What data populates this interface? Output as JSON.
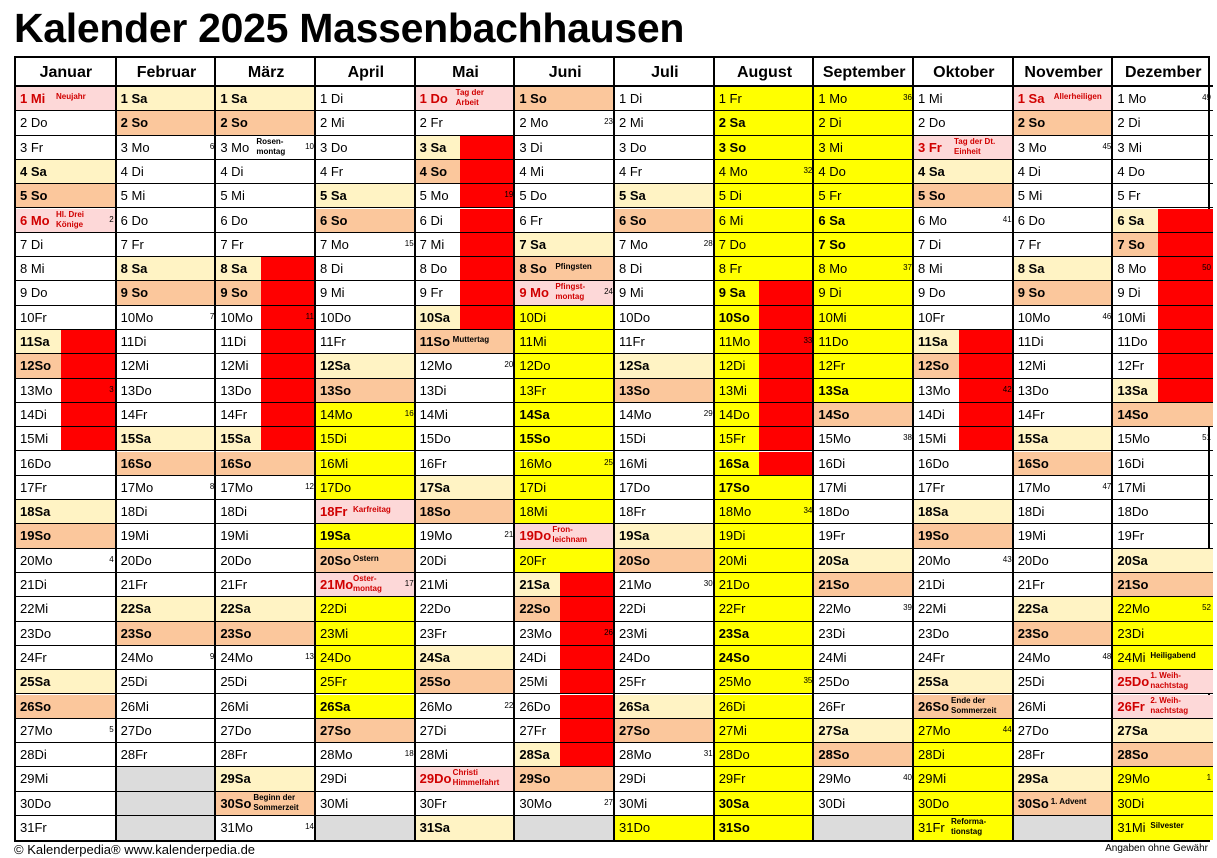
{
  "title": "Kalender 2025 Massenbachhausen",
  "colors": {
    "saturday": "#fff3c4",
    "sunday": "#fbc79c",
    "holiday": "#fdd8d8",
    "school_holiday": "#ffff00",
    "marker": "#ff0000",
    "empty": "#dcdcdc",
    "holiday_text": "#d00000"
  },
  "months": [
    {
      "name": "Januar",
      "first_weekday": 2,
      "days": 31,
      "yellow": [],
      "blocks": [
        11,
        12,
        13,
        14,
        15
      ]
    },
    {
      "name": "Februar",
      "first_weekday": 5,
      "days": 28,
      "yellow": [],
      "blocks": []
    },
    {
      "name": "März",
      "first_weekday": 5,
      "days": 31,
      "yellow": [],
      "blocks": [
        8,
        9,
        10,
        11,
        12,
        13,
        14,
        15
      ]
    },
    {
      "name": "April",
      "first_weekday": 1,
      "days": 30,
      "yellow": [
        14,
        15,
        16,
        17,
        19,
        22,
        23,
        24,
        25,
        26
      ],
      "blocks": []
    },
    {
      "name": "Mai",
      "first_weekday": 3,
      "days": 31,
      "yellow": [],
      "blocks": [
        3,
        4,
        5,
        6,
        7,
        8,
        9,
        10
      ]
    },
    {
      "name": "Juni",
      "first_weekday": 6,
      "days": 30,
      "yellow": [
        10,
        11,
        12,
        13,
        14,
        15,
        16,
        17,
        18,
        20
      ],
      "blocks": [
        21,
        22,
        23,
        24,
        25,
        26,
        27,
        28
      ]
    },
    {
      "name": "Juli",
      "first_weekday": 1,
      "days": 31,
      "yellow": [
        31
      ],
      "blocks": []
    },
    {
      "name": "August",
      "first_weekday": 4,
      "days": 31,
      "yellow": [
        1,
        2,
        3,
        4,
        5,
        6,
        7,
        8,
        9,
        10,
        11,
        12,
        13,
        14,
        15,
        16,
        17,
        18,
        19,
        20,
        21,
        22,
        23,
        24,
        25,
        26,
        27,
        28,
        29,
        30,
        31
      ],
      "blocks": [
        9,
        10,
        11,
        12,
        13,
        14,
        15,
        16
      ]
    },
    {
      "name": "September",
      "first_weekday": 0,
      "days": 30,
      "yellow": [
        1,
        2,
        3,
        4,
        5,
        6,
        7,
        8,
        9,
        10,
        11,
        12,
        13
      ],
      "blocks": []
    },
    {
      "name": "Oktober",
      "first_weekday": 2,
      "days": 31,
      "yellow": [
        27,
        28,
        29,
        30,
        31
      ],
      "blocks": [
        11,
        12,
        13,
        14,
        15
      ]
    },
    {
      "name": "November",
      "first_weekday": 5,
      "days": 30,
      "yellow": [],
      "blocks": []
    },
    {
      "name": "Dezember",
      "first_weekday": 0,
      "days": 31,
      "yellow": [
        22,
        23,
        24,
        29,
        30,
        31
      ],
      "blocks": [
        6,
        7,
        8,
        9,
        10,
        11,
        12,
        13
      ]
    }
  ],
  "weekdays": [
    "Mo",
    "Di",
    "Mi",
    "Do",
    "Fr",
    "Sa",
    "So"
  ],
  "holidays": {
    "0-1": "Neujahr",
    "0-6": "Hl. Drei\nKönige",
    "3-18": "Karfreitag",
    "3-21": "Oster-\nmontag",
    "4-1": "Tag der\nArbeit",
    "4-29": "Christi\nHimmelfahrt",
    "5-9": "Pfingst-\nmontag",
    "5-19": "Fron-\nleichnam",
    "9-3": "Tag der Dt.\nEinheit",
    "10-1": "Allerheiligen",
    "11-25": "1. Weih-\nnachtstag",
    "11-26": "2. Weih-\nnachtstag"
  },
  "events": {
    "2-3": "Rosen-\nmontag",
    "2-30": "Beginn der\nSommerzeit",
    "3-20": "Ostern",
    "4-11": "Muttertag",
    "5-8": "Pfingsten",
    "9-26": "Ende der\nSommerzeit",
    "9-31": "Reforma-\ntionstag",
    "10-30": "1. Advent",
    "11-24": "Heiligabend",
    "11-31": "Silvester"
  },
  "week_numbers": {
    "0-6": "2",
    "0-13": "3",
    "0-20": "4",
    "0-27": "5",
    "1-3": "6",
    "1-10": "7",
    "1-17": "8",
    "1-24": "9",
    "2-3": "10",
    "2-10": "11",
    "2-17": "12",
    "2-24": "13",
    "2-31": "14",
    "3-7": "15",
    "3-14": "16",
    "3-21": "17",
    "3-28": "18",
    "4-5": "19",
    "4-12": "20",
    "4-19": "21",
    "4-26": "22",
    "5-2": "23",
    "5-9": "24",
    "5-16": "25",
    "5-23": "26",
    "5-30": "27",
    "6-7": "28",
    "6-14": "29",
    "6-21": "30",
    "6-28": "31",
    "7-4": "32",
    "7-11": "33",
    "7-18": "34",
    "7-25": "35",
    "8-1": "36",
    "8-8": "37",
    "8-15": "38",
    "8-22": "39",
    "8-29": "40",
    "9-6": "41",
    "9-13": "42",
    "9-20": "43",
    "9-27": "44",
    "10-3": "45",
    "10-10": "46",
    "10-17": "47",
    "10-24": "48",
    "11-1": "49",
    "11-8": "50",
    "11-15": "51",
    "11-22": "52",
    "11-29": "1"
  },
  "footer": {
    "left": "© Kalenderpedia®   www.kalenderpedia.de",
    "right": "Angaben ohne Gewähr"
  }
}
